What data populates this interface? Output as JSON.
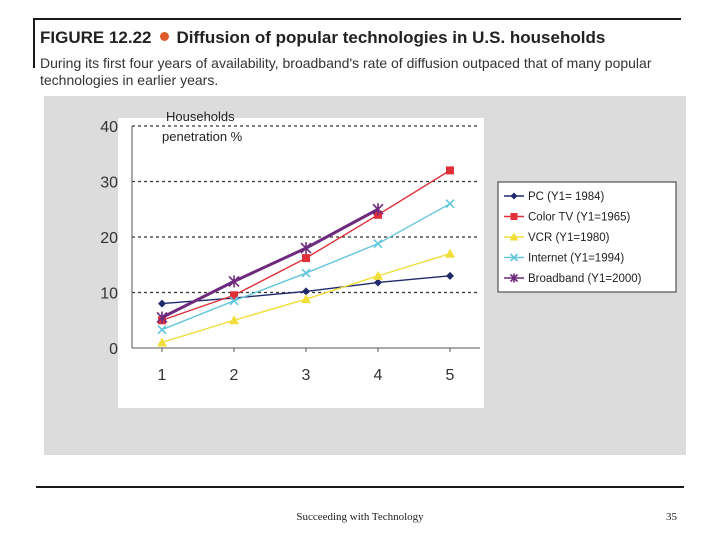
{
  "figure": {
    "label": "FIGURE 12.22",
    "title": "Diffusion of popular technologies in U.S. households",
    "caption": "During its first four years of availability, broadband's rate of diffusion outpaced that of many popular technologies in earlier years."
  },
  "footer": {
    "text": "Succeeding with Technology",
    "page": "35"
  },
  "chart_data": {
    "type": "line",
    "title": "Diffusion of popular technologies in U.S. households",
    "ylabel": "Households penetration %",
    "ylabel_lines": [
      "Households",
      "penetration %"
    ],
    "xlabel": "",
    "categories": [
      "1",
      "2",
      "3",
      "4",
      "5"
    ],
    "x": [
      1,
      2,
      3,
      4,
      5
    ],
    "ylim": [
      0,
      40
    ],
    "yticks": [
      0,
      10,
      20,
      30,
      40
    ],
    "grid": "horizontal dashed",
    "legend_position": "right",
    "series": [
      {
        "name": "PC (Y1= 1984)",
        "values": [
          8,
          9,
          10.2,
          11.8,
          13
        ],
        "color": "#1f2a6b",
        "marker": "diamond"
      },
      {
        "name": "Color TV (Y1=1965)",
        "values": [
          5,
          9.5,
          16.2,
          24,
          32
        ],
        "color": "#e0303a",
        "marker": "square"
      },
      {
        "name": "VCR (Y1=1980)",
        "values": [
          1,
          5,
          8.8,
          13,
          17
        ],
        "color": "#f0de3a",
        "marker": "triangle"
      },
      {
        "name": "Internet (Y1=1994)",
        "values": [
          3.3,
          8.5,
          13.5,
          18.8,
          26
        ],
        "color": "#62c7dc",
        "marker": "x"
      },
      {
        "name": "Broadband (Y1=2000)",
        "values": [
          5.5,
          12,
          18,
          25,
          null
        ],
        "color": "#6e2a7c",
        "marker": "star"
      }
    ]
  }
}
